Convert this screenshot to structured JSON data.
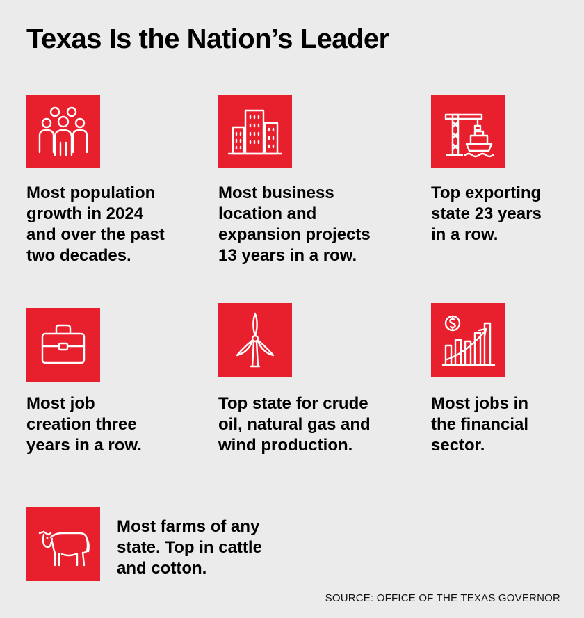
{
  "title": "Texas Is the Nation’s Leader",
  "accent_color": "#e8202e",
  "background_color": "#ebebeb",
  "items": [
    {
      "icon": "people-group-icon",
      "lines": [
        "Most population",
        "growth in 2024",
        "and over the past",
        "two decades."
      ]
    },
    {
      "icon": "office-buildings-icon",
      "lines": [
        "Most business",
        "location and",
        "expansion projects",
        "13 years in a row."
      ]
    },
    {
      "icon": "port-crane-ship-icon",
      "lines": [
        "Top exporting",
        "state 23 years",
        "in a row."
      ]
    },
    {
      "icon": "briefcase-icon",
      "lines": [
        "Most job",
        "creation three",
        "years in a row."
      ]
    },
    {
      "icon": "wind-turbine-icon",
      "lines": [
        "Top state for crude",
        "oil, natural gas and",
        "wind production."
      ]
    },
    {
      "icon": "financial-growth-chart-icon",
      "lines": [
        "Most jobs in",
        "the financial",
        "sector."
      ]
    },
    {
      "icon": "cow-icon",
      "lines": [
        "Most farms of any",
        "state. Top in cattle",
        "and cotton."
      ]
    }
  ],
  "source": "SOURCE: OFFICE OF THE TEXAS GOVERNOR"
}
